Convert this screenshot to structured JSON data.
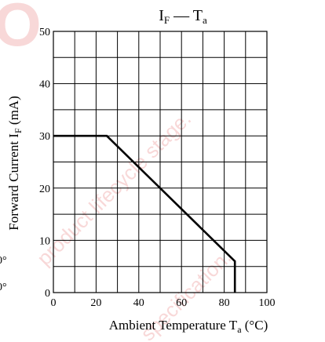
{
  "chart_data": {
    "type": "line",
    "title": {
      "main": "I",
      "main_sub": "F",
      "dash": " — ",
      "sym": "T",
      "sym_sub": "a"
    },
    "xlabel": {
      "text": "Ambient Temperature  T",
      "sub": "a",
      "unit": "  (°C)"
    },
    "ylabel": {
      "text": "Forward Current  I",
      "sub": "F",
      "unit": "  (mA)"
    },
    "xlim": [
      0,
      100
    ],
    "ylim": [
      0,
      50
    ],
    "x_ticks": [
      0,
      20,
      40,
      60,
      80,
      100
    ],
    "y_ticks": [
      0,
      10,
      20,
      30,
      40,
      50
    ],
    "x_grid": [
      0,
      10,
      20,
      30,
      40,
      50,
      60,
      70,
      80,
      90,
      100
    ],
    "y_grid": [
      0,
      5,
      10,
      15,
      20,
      25,
      30,
      35,
      40,
      45,
      50
    ],
    "grid": true,
    "series": [
      {
        "x": [
          0,
          25,
          85,
          85
        ],
        "y": [
          30,
          30,
          6,
          0
        ]
      }
    ],
    "watermark": {
      "letter": "O",
      "lines": [
        "product lifecycle stage.",
        "specification."
      ]
    },
    "edge_fragments": [
      "0°",
      "0°"
    ]
  }
}
